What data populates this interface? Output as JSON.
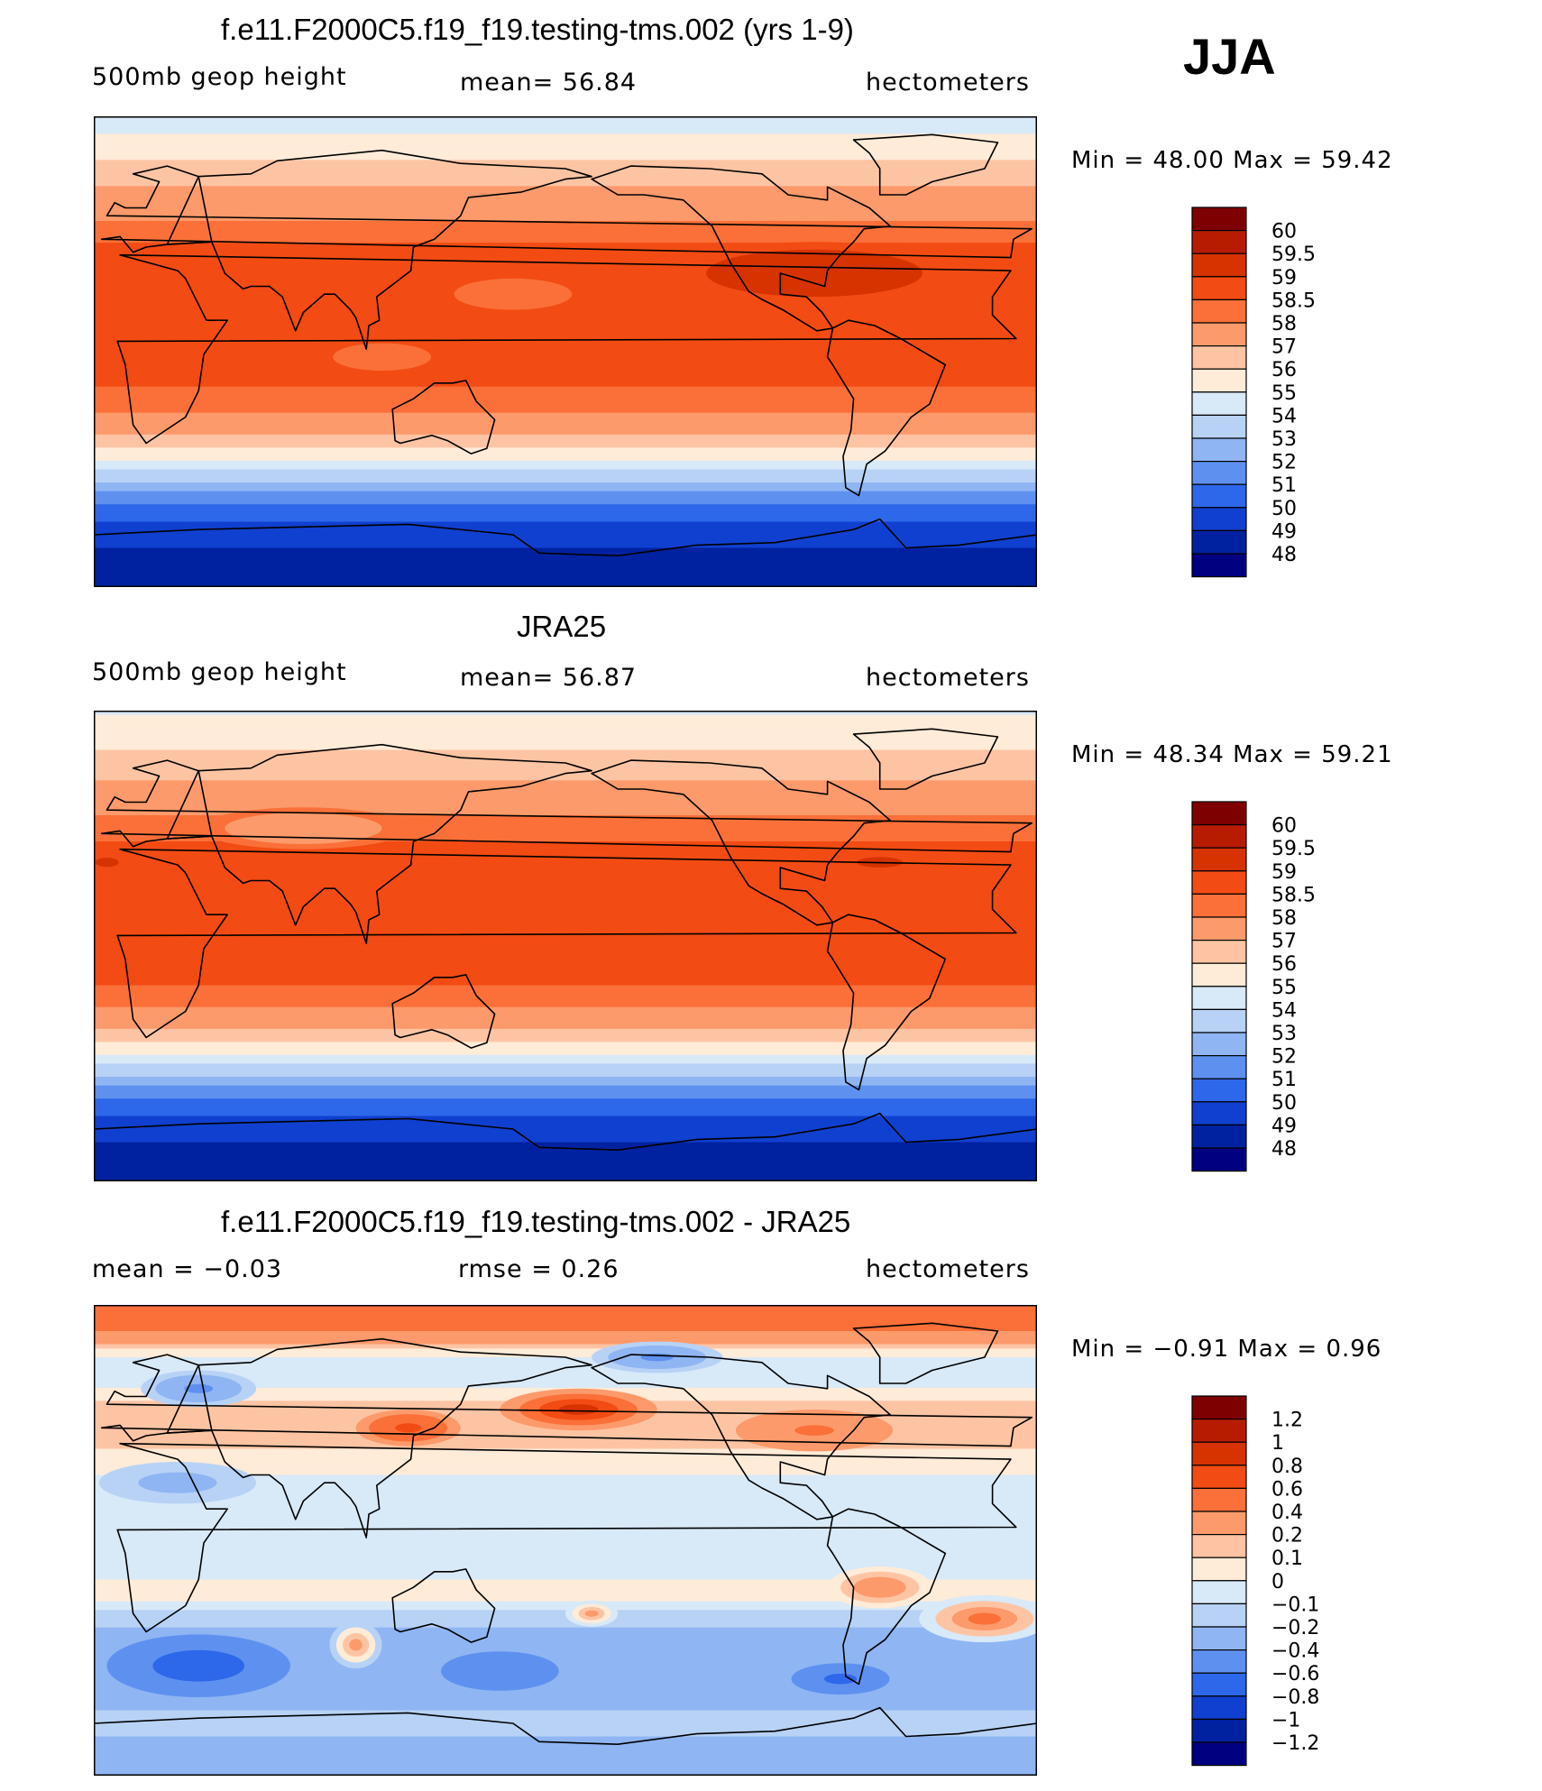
{
  "season": "JJA",
  "chart_data": [
    {
      "type": "heatmap",
      "title": "f.e11.F2000C5.f19_f19.testing-tms.002 (yrs 1-9)",
      "left_label": "500mb geop height",
      "center_label": "mean=   56.84",
      "units": "hectometers",
      "min": 48.0,
      "max": 59.42,
      "minmax_text": "Min =   48.00 Max =   59.42",
      "levels": [
        "60",
        "59.5",
        "59",
        "58.5",
        "58",
        "57",
        "56",
        "55",
        "54",
        "53",
        "52",
        "51",
        "50",
        "49",
        "48"
      ],
      "colors": [
        "#7f0000",
        "#b81c00",
        "#d63300",
        "#f24b13",
        "#fa7038",
        "#fc9a6b",
        "#fdc4a4",
        "#feebd8",
        "#d8e9f8",
        "#b8d2f6",
        "#8fb5f3",
        "#5e91ef",
        "#2d68ea",
        "#1040d0",
        "#0022a0",
        "#000080"
      ],
      "bands": [
        {
          "lat": 90,
          "v": 54.3
        },
        {
          "lat": 80,
          "v": 55.4
        },
        {
          "lat": 70,
          "v": 56.4
        },
        {
          "lat": 60,
          "v": 57.2
        },
        {
          "lat": 50,
          "v": 58.0
        },
        {
          "lat": 40,
          "v": 58.6
        },
        {
          "lat": 30,
          "v": 58.8
        },
        {
          "lat": 20,
          "v": 58.7
        },
        {
          "lat": 10,
          "v": 58.7
        },
        {
          "lat": 0,
          "v": 58.6
        },
        {
          "lat": -10,
          "v": 58.6
        },
        {
          "lat": -20,
          "v": 58.3
        },
        {
          "lat": -30,
          "v": 57.2
        },
        {
          "lat": -40,
          "v": 55.3
        },
        {
          "lat": -50,
          "v": 52.8
        },
        {
          "lat": -60,
          "v": 50.6
        },
        {
          "lat": -70,
          "v": 49.4
        },
        {
          "lat": -80,
          "v": 48.7
        },
        {
          "lat": -90,
          "v": 48.2
        }
      ],
      "blobs": [
        {
          "lon": 275,
          "lat": 30,
          "rx": 55,
          "ry": 12,
          "v": 59.2
        },
        {
          "lon": 160,
          "lat": 22,
          "rx": 30,
          "ry": 8,
          "v": 58.1
        },
        {
          "lon": 110,
          "lat": -2,
          "rx": 25,
          "ry": 7,
          "v": 58.2
        }
      ]
    },
    {
      "type": "heatmap",
      "title": "JRA25",
      "left_label": "500mb geop height",
      "center_label": "mean=   56.87",
      "units": "hectometers",
      "min": 48.34,
      "max": 59.21,
      "minmax_text": "Min =   48.34 Max =   59.21",
      "levels": [
        "60",
        "59.5",
        "59",
        "58.5",
        "58",
        "57",
        "56",
        "55",
        "54",
        "53",
        "52",
        "51",
        "50",
        "49",
        "48"
      ],
      "colors": [
        "#7f0000",
        "#b81c00",
        "#d63300",
        "#f24b13",
        "#fa7038",
        "#fc9a6b",
        "#fdc4a4",
        "#feebd8",
        "#d8e9f8",
        "#b8d2f6",
        "#8fb5f3",
        "#5e91ef",
        "#2d68ea",
        "#1040d0",
        "#0022a0",
        "#000080"
      ],
      "bands": [
        {
          "lat": 90,
          "v": 54.8
        },
        {
          "lat": 80,
          "v": 55.6
        },
        {
          "lat": 70,
          "v": 56.4
        },
        {
          "lat": 60,
          "v": 57.3
        },
        {
          "lat": 50,
          "v": 58.0
        },
        {
          "lat": 40,
          "v": 58.5
        },
        {
          "lat": 30,
          "v": 58.7
        },
        {
          "lat": 20,
          "v": 58.7
        },
        {
          "lat": 10,
          "v": 58.7
        },
        {
          "lat": 0,
          "v": 58.6
        },
        {
          "lat": -10,
          "v": 58.6
        },
        {
          "lat": -20,
          "v": 58.4
        },
        {
          "lat": -30,
          "v": 57.4
        },
        {
          "lat": -40,
          "v": 55.5
        },
        {
          "lat": -50,
          "v": 52.9
        },
        {
          "lat": -60,
          "v": 50.6
        },
        {
          "lat": -70,
          "v": 49.3
        },
        {
          "lat": -80,
          "v": 48.7
        },
        {
          "lat": -90,
          "v": 48.4
        }
      ],
      "blobs": [
        {
          "lon": 300,
          "lat": 32,
          "rx": 35,
          "ry": 8,
          "v": 59.1
        },
        {
          "lon": 5,
          "lat": 32,
          "rx": 18,
          "ry": 7,
          "v": 59.0
        },
        {
          "lon": 80,
          "lat": 45,
          "rx": 40,
          "ry": 8,
          "v": 57.6
        }
      ]
    },
    {
      "type": "heatmap",
      "title": "f.e11.F2000C5.f19_f19.testing-tms.002 - JRA25",
      "left_label": "mean =   −0.03",
      "center_label": "rmse =    0.26",
      "units": "hectometers",
      "min": -0.91,
      "max": 0.96,
      "minmax_text": "Min =   −0.91 Max =    0.96",
      "levels": [
        "1.2",
        "1",
        "0.8",
        "0.6",
        "0.4",
        "0.2",
        "0.1",
        "0",
        "−0.1",
        "−0.2",
        "−0.4",
        "−0.6",
        "−0.8",
        "−1",
        "−1.2"
      ],
      "colors": [
        "#7f0000",
        "#b81c00",
        "#d63300",
        "#f24b13",
        "#fa7038",
        "#fc9a6b",
        "#fdc4a4",
        "#feebd8",
        "#d8e9f8",
        "#b8d2f6",
        "#8fb5f3",
        "#5e91ef",
        "#2d68ea",
        "#1040d0",
        "#0022a0",
        "#000080"
      ],
      "bands": [
        {
          "lat": 90,
          "v": 0.45
        },
        {
          "lat": 80,
          "v": 0.4
        },
        {
          "lat": 70,
          "v": 0.0
        },
        {
          "lat": 60,
          "v": -0.05
        },
        {
          "lat": 50,
          "v": 0.2
        },
        {
          "lat": 40,
          "v": 0.15
        },
        {
          "lat": 30,
          "v": 0.05
        },
        {
          "lat": 20,
          "v": -0.05
        },
        {
          "lat": 10,
          "v": -0.05
        },
        {
          "lat": 0,
          "v": -0.05
        },
        {
          "lat": -10,
          "v": -0.05
        },
        {
          "lat": -20,
          "v": 0.05
        },
        {
          "lat": -30,
          "v": -0.15
        },
        {
          "lat": -40,
          "v": -0.35
        },
        {
          "lat": -50,
          "v": -0.3
        },
        {
          "lat": -60,
          "v": -0.25
        },
        {
          "lat": -70,
          "v": -0.15
        },
        {
          "lat": -80,
          "v": -0.25
        },
        {
          "lat": -90,
          "v": -0.3
        }
      ],
      "blobs": [
        {
          "lon": 185,
          "lat": 50,
          "rx": 30,
          "ry": 8,
          "v": 0.85
        },
        {
          "lon": 120,
          "lat": 43,
          "rx": 20,
          "ry": 7,
          "v": 0.65
        },
        {
          "lon": 275,
          "lat": 42,
          "rx": 30,
          "ry": 8,
          "v": 0.45
        },
        {
          "lon": 40,
          "lat": 58,
          "rx": 22,
          "ry": 7,
          "v": -0.45
        },
        {
          "lon": 215,
          "lat": 70,
          "rx": 25,
          "ry": 6,
          "v": -0.45
        },
        {
          "lon": 32,
          "lat": 22,
          "rx": 30,
          "ry": 8,
          "v": -0.35
        },
        {
          "lon": 40,
          "lat": -48,
          "rx": 35,
          "ry": 12,
          "v": -0.7
        },
        {
          "lon": 155,
          "lat": -50,
          "rx": 30,
          "ry": 10,
          "v": -0.6
        },
        {
          "lon": 285,
          "lat": -53,
          "rx": 25,
          "ry": 8,
          "v": -0.7
        },
        {
          "lon": 100,
          "lat": -40,
          "rx": 10,
          "ry": 9,
          "v": 0.35
        },
        {
          "lon": 340,
          "lat": -30,
          "rx": 25,
          "ry": 9,
          "v": 0.4
        },
        {
          "lon": 190,
          "lat": -28,
          "rx": 10,
          "ry": 5,
          "v": 0.2
        },
        {
          "lon": 300,
          "lat": -18,
          "rx": 20,
          "ry": 8,
          "v": 0.3
        }
      ]
    }
  ]
}
